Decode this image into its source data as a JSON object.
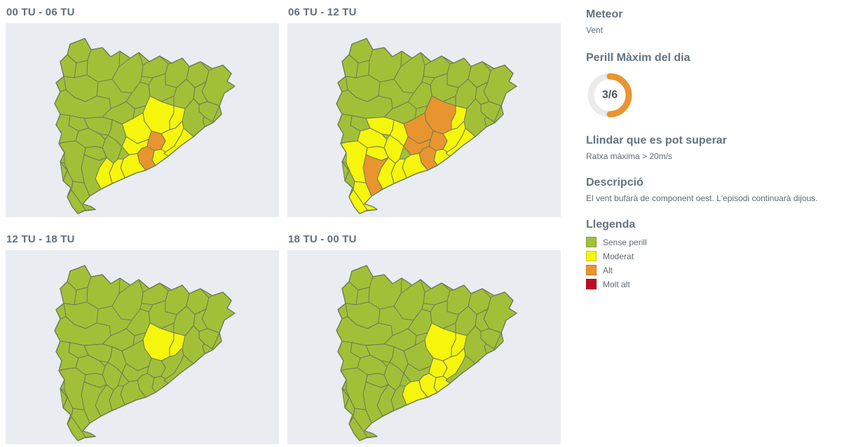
{
  "colors": {
    "sense": "#a2c037",
    "moderat": "#f6f50c",
    "alt": "#e8952f",
    "molt_alt": "#c10b23",
    "panel_bg": "#e9edf2",
    "map_border": "#6d7a58",
    "heading_text": "#61737f",
    "gauge_track": "#ebebeb",
    "gauge_arc": "#e8952f"
  },
  "maps": [
    {
      "label": "00 TU - 06 TU",
      "alt": [
        "vallesoccidental",
        "baixllobregat"
      ],
      "moderat": [
        "bages",
        "moianes",
        "anoia",
        "vallesoriental",
        "maresme",
        "barcelones",
        "altpenedes",
        "garraf",
        "baixpenedes",
        "tarragones"
      ]
    },
    {
      "label": "06 TU - 12 TU",
      "alt": [
        "bages",
        "anoia",
        "vallesoccidental",
        "baixllobregat",
        "altpenedes",
        "baixcamp"
      ],
      "moderat": [
        "moianes",
        "vallesoriental",
        "maresme",
        "barcelones",
        "garraf",
        "baixpenedes",
        "altcamp",
        "conca",
        "urgell",
        "garrigues",
        "priorat",
        "tarragones",
        "riberaebre",
        "baixebre",
        "montsia"
      ]
    },
    {
      "label": "12 TU - 18 TU",
      "alt": [],
      "moderat": [
        "bages",
        "moianes"
      ]
    },
    {
      "label": "18 TU - 00 TU",
      "alt": [],
      "moderat": [
        "bages",
        "moianes",
        "vallesoccidental",
        "vallesoriental",
        "baixllobregat",
        "barcelones",
        "garraf"
      ]
    }
  ],
  "sidebar": {
    "meteor_title": "Meteor",
    "meteor_value": "Vent",
    "perill_title": "Perill Màxim del dia",
    "llindar_title": "Llindar que es pot superar",
    "llindar_value": "Ratxa màxima > 20m/s",
    "descripcio_title": "Descripció",
    "descripcio_value": "El vent bufarà de component oest. L'episodi continuarà dijous.",
    "llegenda_title": "Llegenda",
    "legend_items": [
      {
        "id": "sense",
        "label": "Sense perill",
        "color": "#a2c037"
      },
      {
        "id": "moderat",
        "label": "Moderat",
        "color": "#f6f50c"
      },
      {
        "id": "alt",
        "label": "Alt",
        "color": "#e8952f"
      },
      {
        "id": "molt_alt",
        "label": "Molt alt",
        "color": "#c10b23"
      }
    ]
  },
  "gauge": {
    "value": 3,
    "max": 6,
    "label": "3/6"
  }
}
